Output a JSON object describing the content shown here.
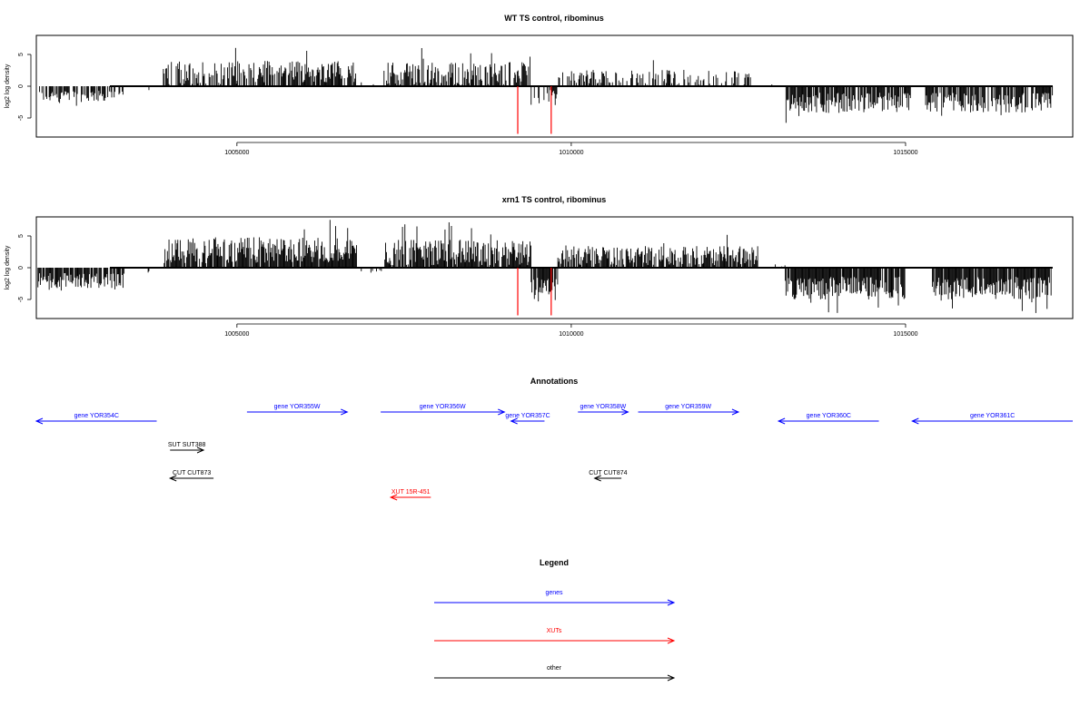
{
  "chart_data": [
    {
      "type": "bar",
      "title": "WT TS control, ribominus",
      "xlabel": "",
      "ylabel": "log2 log density",
      "xlim": [
        1002000,
        1017500
      ],
      "ylim": [
        -8,
        8
      ],
      "xticks": [
        1005000,
        1010000,
        1015000
      ],
      "xtick_labels": [
        "1005000",
        "1010000",
        "1015000"
      ],
      "yticks": [
        -5,
        0,
        5
      ],
      "ytick_labels": [
        "-5",
        "0",
        "5"
      ],
      "baseline_range": [
        1003100,
        1017200
      ],
      "segments": [
        {
          "from": 1002000,
          "to": 1003300,
          "mean": -1.6,
          "amp": 0.9,
          "density": 0.55
        },
        {
          "from": 1003300,
          "to": 1003900,
          "mean": -0.4,
          "amp": 0.4,
          "density": 0.05
        },
        {
          "from": 1003900,
          "to": 1005000,
          "mean": 2.1,
          "amp": 1.8,
          "density": 0.6
        },
        {
          "from": 1005000,
          "to": 1006800,
          "mean": 2.3,
          "amp": 1.7,
          "density": 0.75
        },
        {
          "from": 1006800,
          "to": 1007200,
          "mean": 0.3,
          "amp": 0.4,
          "density": 0.08
        },
        {
          "from": 1007200,
          "to": 1009400,
          "mean": 2.0,
          "amp": 1.8,
          "density": 0.7
        },
        {
          "from": 1009400,
          "to": 1009800,
          "mean": -1.8,
          "amp": 1.2,
          "density": 0.5
        },
        {
          "from": 1009800,
          "to": 1012700,
          "mean": 1.4,
          "amp": 1.2,
          "density": 0.45
        },
        {
          "from": 1012700,
          "to": 1013200,
          "mean": 0.2,
          "amp": 0.3,
          "density": 0.05
        },
        {
          "from": 1013200,
          "to": 1015100,
          "mean": -2.6,
          "amp": 1.6,
          "density": 0.85
        },
        {
          "from": 1015100,
          "to": 1015300,
          "mean": 0.0,
          "amp": 0.0,
          "density": 0.0
        },
        {
          "from": 1015300,
          "to": 1017200,
          "mean": -2.6,
          "amp": 1.6,
          "density": 0.85
        }
      ],
      "markers": [
        {
          "x": 1009200,
          "y": -7.5,
          "color": "#ff0000"
        },
        {
          "x": 1009700,
          "y": -7.5,
          "color": "#ff0000"
        }
      ]
    },
    {
      "type": "bar",
      "title": "xrn1 TS control, ribominus",
      "xlabel": "",
      "ylabel": "log2 log density",
      "xlim": [
        1002000,
        1017500
      ],
      "ylim": [
        -8,
        8
      ],
      "xticks": [
        1005000,
        1010000,
        1015000
      ],
      "xtick_labels": [
        "1005000",
        "1010000",
        "1015000"
      ],
      "yticks": [
        -5,
        0,
        5
      ],
      "ytick_labels": [
        "-5",
        "0",
        "5"
      ],
      "baseline_range": [
        1003100,
        1017200
      ],
      "segments": [
        {
          "from": 1002000,
          "to": 1003300,
          "mean": -2.0,
          "amp": 1.2,
          "density": 0.8
        },
        {
          "from": 1003300,
          "to": 1003900,
          "mean": -0.6,
          "amp": 0.5,
          "density": 0.15
        },
        {
          "from": 1003900,
          "to": 1005000,
          "mean": 2.6,
          "amp": 2.0,
          "density": 0.85
        },
        {
          "from": 1005000,
          "to": 1006800,
          "mean": 2.8,
          "amp": 2.0,
          "density": 0.95
        },
        {
          "from": 1006800,
          "to": 1007200,
          "mean": -0.4,
          "amp": 0.6,
          "density": 0.15
        },
        {
          "from": 1007200,
          "to": 1009400,
          "mean": 2.4,
          "amp": 2.0,
          "density": 0.9
        },
        {
          "from": 1009400,
          "to": 1009800,
          "mean": -3.0,
          "amp": 1.5,
          "density": 0.8
        },
        {
          "from": 1009800,
          "to": 1012800,
          "mean": 1.9,
          "amp": 1.5,
          "density": 0.8
        },
        {
          "from": 1012800,
          "to": 1013200,
          "mean": 0.2,
          "amp": 0.3,
          "density": 0.05
        },
        {
          "from": 1013200,
          "to": 1015000,
          "mean": -3.2,
          "amp": 1.8,
          "density": 0.95
        },
        {
          "from": 1015000,
          "to": 1015400,
          "mean": 0.0,
          "amp": 0.0,
          "density": 0.0
        },
        {
          "from": 1015400,
          "to": 1017200,
          "mean": -3.2,
          "amp": 1.8,
          "density": 0.95
        }
      ],
      "markers": [
        {
          "x": 1009200,
          "y": -7.5,
          "color": "#ff0000"
        },
        {
          "x": 1009700,
          "y": -7.5,
          "color": "#ff0000"
        }
      ]
    }
  ],
  "annotations": {
    "title": "Annotations",
    "xlim": [
      1002000,
      1017500
    ],
    "features": [
      {
        "label": "gene YOR354C",
        "start": 1002000,
        "end": 1003800,
        "strand": "-",
        "row": 0,
        "color": "#0000ff"
      },
      {
        "label": "gene YOR355W",
        "start": 1005150,
        "end": 1006650,
        "strand": "+",
        "row": 1,
        "color": "#0000ff"
      },
      {
        "label": "gene YOR356W",
        "start": 1007150,
        "end": 1009000,
        "strand": "+",
        "row": 1,
        "color": "#0000ff"
      },
      {
        "label": "gene YOR357C",
        "start": 1009100,
        "end": 1009600,
        "strand": "-",
        "row": 0,
        "color": "#0000ff"
      },
      {
        "label": "gene YOR358W",
        "start": 1010100,
        "end": 1010850,
        "strand": "+",
        "row": 1,
        "color": "#0000ff"
      },
      {
        "label": "gene YOR359W",
        "start": 1011000,
        "end": 1012500,
        "strand": "+",
        "row": 1,
        "color": "#0000ff"
      },
      {
        "label": "gene YOR360C",
        "start": 1013100,
        "end": 1014600,
        "strand": "-",
        "row": 0,
        "color": "#0000ff"
      },
      {
        "label": "gene YOR361C",
        "start": 1015100,
        "end": 1017500,
        "strand": "-",
        "row": 0,
        "color": "#0000ff"
      },
      {
        "label": "SUT SUT388",
        "start": 1004000,
        "end": 1004500,
        "strand": "+",
        "row": 2,
        "color": "#000000"
      },
      {
        "label": "CUT CUT873",
        "start": 1004000,
        "end": 1004650,
        "strand": "-",
        "row": 3,
        "color": "#000000"
      },
      {
        "label": "CUT CUT874",
        "start": 1010350,
        "end": 1010750,
        "strand": "-",
        "row": 3,
        "color": "#000000"
      },
      {
        "label": "XUT 15R-451",
        "start": 1007300,
        "end": 1007900,
        "strand": "-",
        "row": 4,
        "color": "#ff0000"
      }
    ]
  },
  "legend": {
    "title": "Legend",
    "items": [
      {
        "label": "genes",
        "color": "#0000ff"
      },
      {
        "label": "XUTs",
        "color": "#ff0000"
      },
      {
        "label": "other",
        "color": "#000000"
      }
    ]
  }
}
